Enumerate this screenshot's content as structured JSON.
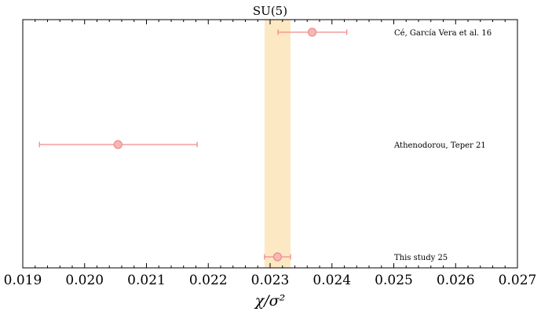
{
  "chart_data": {
    "type": "scatter",
    "title": "SU(5)",
    "xlabel": "χ/σ²",
    "xlim": [
      0.019,
      0.027
    ],
    "xticks": [
      "0.019",
      "0.020",
      "0.021",
      "0.022",
      "0.023",
      "0.024",
      "0.025",
      "0.026",
      "0.027"
    ],
    "band": {
      "xmin": 0.02291,
      "xmax": 0.02333,
      "color": "#fde8c4"
    },
    "marker_color": "#f08a8a",
    "points": [
      {
        "label": "Cé, García Vera et al. 16",
        "x": 0.02368,
        "xerr_low": 0.02313,
        "xerr_high": 0.02424
      },
      {
        "label": "Athenodorou, Teper 21",
        "x": 0.02054,
        "xerr_low": 0.01927,
        "xerr_high": 0.02182
      },
      {
        "label": "This study 25",
        "x": 0.02312,
        "xerr_low": 0.02291,
        "xerr_high": 0.02333
      }
    ]
  }
}
